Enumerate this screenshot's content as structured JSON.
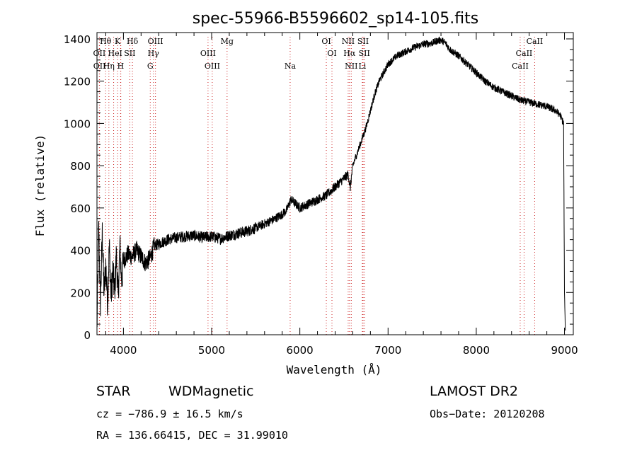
{
  "chart_data": {
    "type": "line",
    "title": "spec-55966-B5596602_sp14-105.fits",
    "xlabel": "Wavelength (Å)",
    "ylabel": "Flux (relative)",
    "xlim": [
      3700,
      9100
    ],
    "ylim": [
      0,
      1430
    ],
    "xticks": [
      4000,
      5000,
      6000,
      7000,
      8000,
      9000
    ],
    "xtick_labels": [
      "4000",
      "5000",
      "6000",
      "7000",
      "8000",
      "9000"
    ],
    "yticks": [
      0,
      200,
      400,
      600,
      800,
      1000,
      1200,
      1400
    ],
    "ytick_labels": [
      "0",
      "200",
      "400",
      "600",
      "800",
      "1000",
      "1200",
      "1400"
    ],
    "grid": false,
    "spectrum": {
      "x": [
        3700,
        3720,
        3740,
        3760,
        3780,
        3800,
        3820,
        3840,
        3860,
        3880,
        3900,
        3920,
        3940,
        3960,
        3980,
        4000,
        4050,
        4100,
        4150,
        4200,
        4250,
        4300,
        4350,
        4400,
        4500,
        4600,
        4700,
        4800,
        4900,
        5000,
        5100,
        5200,
        5300,
        5400,
        5500,
        5600,
        5700,
        5800,
        5850,
        5900,
        5950,
        6000,
        6100,
        6200,
        6300,
        6400,
        6500,
        6550,
        6570,
        6600,
        6650,
        6700,
        6750,
        6800,
        6850,
        6900,
        6950,
        7000,
        7050,
        7100,
        7200,
        7300,
        7400,
        7500,
        7550,
        7600,
        7650,
        7700,
        7800,
        7900,
        8000,
        8100,
        8200,
        8300,
        8400,
        8500,
        8600,
        8700,
        8800,
        8900,
        8950,
        8990,
        9000,
        9010
      ],
      "y": [
        20,
        500,
        150,
        480,
        200,
        330,
        150,
        420,
        180,
        300,
        200,
        380,
        180,
        420,
        250,
        350,
        380,
        370,
        400,
        370,
        340,
        360,
        420,
        430,
        450,
        460,
        465,
        470,
        460,
        465,
        455,
        470,
        480,
        490,
        505,
        525,
        545,
        570,
        590,
        640,
        620,
        600,
        620,
        640,
        660,
        700,
        740,
        760,
        690,
        800,
        860,
        920,
        980,
        1060,
        1140,
        1200,
        1240,
        1280,
        1300,
        1320,
        1340,
        1360,
        1375,
        1380,
        1390,
        1395,
        1380,
        1350,
        1320,
        1280,
        1240,
        1200,
        1170,
        1150,
        1130,
        1110,
        1100,
        1090,
        1080,
        1060,
        1040,
        1000,
        200,
        20
      ]
    },
    "lines": [
      {
        "label": "Hθ",
        "x": 3798,
        "row": 1
      },
      {
        "label": "K",
        "x": 3934,
        "row": 1
      },
      {
        "label": "Hδ",
        "x": 4102,
        "row": 1
      },
      {
        "label": "OIII",
        "x": 4363,
        "row": 1
      },
      {
        "label": "Mg",
        "x": 5175,
        "row": 1
      },
      {
        "label": "OI",
        "x": 6300,
        "row": 1
      },
      {
        "label": "NII",
        "x": 6548,
        "row": 1
      },
      {
        "label": "SII",
        "x": 6717,
        "row": 1
      },
      {
        "label": "CaII",
        "x": 8662,
        "row": 1
      },
      {
        "label": "OII",
        "x": 3727,
        "row": 2
      },
      {
        "label": "He",
        "x": 3889,
        "row": 2
      },
      {
        "label": "I",
        "x": 3970,
        "row": 2
      },
      {
        "label": "SII",
        "x": 4072,
        "row": 2
      },
      {
        "label": "Hγ",
        "x": 4340,
        "row": 2
      },
      {
        "label": "OIII",
        "x": 4959,
        "row": 2
      },
      {
        "label": "OI",
        "x": 6364,
        "row": 2
      },
      {
        "label": "Hα",
        "x": 6563,
        "row": 2
      },
      {
        "label": "SII",
        "x": 6731,
        "row": 2
      },
      {
        "label": "CaII",
        "x": 8542,
        "row": 2
      },
      {
        "label": "OII",
        "x": 3729,
        "row": 3
      },
      {
        "label": "Hη",
        "x": 3835,
        "row": 3
      },
      {
        "label": "H",
        "x": 3968,
        "row": 3
      },
      {
        "label": "G",
        "x": 4304,
        "row": 3
      },
      {
        "label": "OIII",
        "x": 5007,
        "row": 3
      },
      {
        "label": "Na",
        "x": 5890,
        "row": 3
      },
      {
        "label": "NII",
        "x": 6583,
        "row": 3
      },
      {
        "label": "Li",
        "x": 6708,
        "row": 3
      },
      {
        "label": "CaII",
        "x": 8498,
        "row": 3
      }
    ]
  },
  "info": {
    "class": "STAR",
    "subclass": "WDMagnetic",
    "survey": "LAMOST DR2",
    "cz": "cz = −786.9 ± 16.5 km/s",
    "obs_date": "Obs−Date: 20120208",
    "radec": "RA = 136.66415, DEC =  31.99010"
  },
  "colors": {
    "spectrum": "#000000",
    "line_markers": "#cc2222",
    "axes": "#000000"
  }
}
